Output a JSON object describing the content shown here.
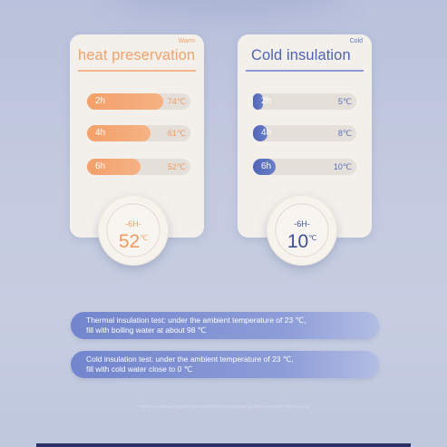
{
  "warm_card": {
    "tag": "Warm",
    "title": "heat preservation",
    "rows": [
      {
        "hours": "2h",
        "temp": "74℃",
        "fill_fraction": 0.74
      },
      {
        "hours": "4h",
        "temp": "61℃",
        "fill_fraction": 0.61
      },
      {
        "hours": "6h",
        "temp": "52℃",
        "fill_fraction": 0.52
      }
    ],
    "dial": {
      "hours": "-6H-",
      "temp": "52",
      "unit": "℃"
    }
  },
  "cold_card": {
    "tag": "Cold",
    "title": "Cold insulation",
    "rows": [
      {
        "hours": "2h",
        "temp": "5℃",
        "fill_fraction": 0.1
      },
      {
        "hours": "4h",
        "temp": "8℃",
        "fill_fraction": 0.14
      },
      {
        "hours": "6h",
        "temp": "10℃",
        "fill_fraction": 0.22
      }
    ],
    "dial": {
      "hours": "-6H-",
      "temp": "10",
      "unit": "℃"
    }
  },
  "notes": {
    "thermal_line1": "Thermal insulation test: under the ambient temperature of 23 ℃,",
    "thermal_line2": "fill with boiling water at about 98 ℃",
    "cold_line1": "Cold insulation test: under the ambient temperature of 23 ℃,",
    "cold_line2": "fill with cold water close to 0 ℃"
  },
  "footnote": "*The above data are obtained from Schmidt's internal laboratory tests and are for reference only",
  "colors": {
    "warm_accent": "#f4a06a",
    "cold_accent": "#5065b6",
    "background": "#c3cadf"
  }
}
